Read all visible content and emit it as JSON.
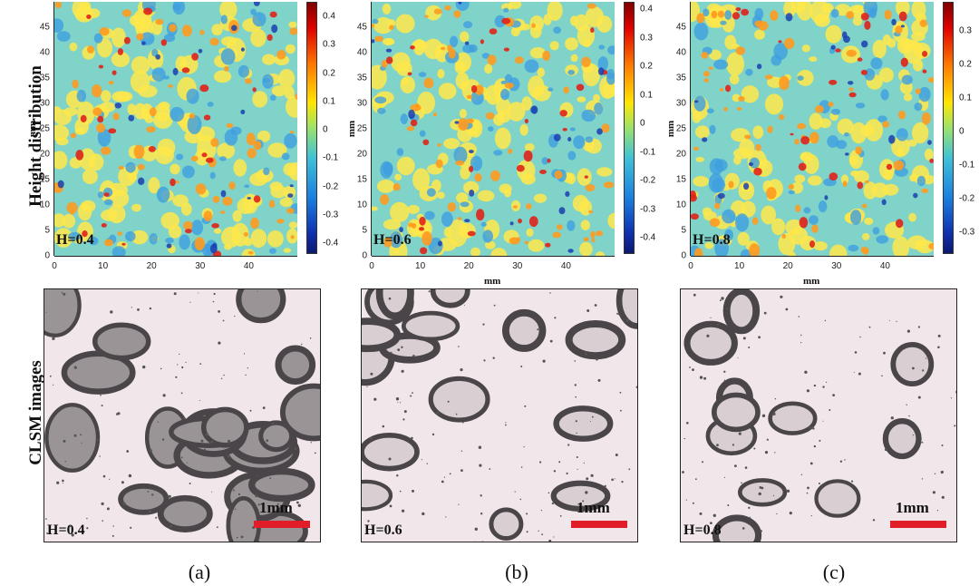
{
  "row_labels": {
    "top": "Height distribution",
    "bottom": "CLSM images"
  },
  "axis_unit": "mm",
  "panels": [
    {
      "id": "a",
      "caption": "(a)",
      "inset": "H=0.4",
      "scale": "1mm",
      "x_ticks": [
        "0",
        "10",
        "20",
        "30",
        "40"
      ],
      "y_ticks": [
        "0",
        "5",
        "10",
        "15",
        "20",
        "25",
        "30",
        "35",
        "40",
        "45"
      ],
      "cbar_ticks": [
        "0.4",
        "0.3",
        "0.2",
        "0.1",
        "0",
        "-0.1",
        "-0.2",
        "-0.3",
        "-0.4"
      ],
      "hurst": 0.4
    },
    {
      "id": "b",
      "caption": "(b)",
      "inset": "H=0.6",
      "scale": "1mm",
      "x_ticks": [
        "0",
        "10",
        "20",
        "30",
        "40"
      ],
      "y_ticks": [
        "0",
        "5",
        "10",
        "15",
        "20",
        "25",
        "30",
        "35",
        "40",
        "45"
      ],
      "cbar_ticks": [
        "0.4",
        "0.3",
        "0.2",
        "0.1",
        "0",
        "-0.1",
        "-0.2",
        "-0.3",
        "-0.4"
      ],
      "hurst": 0.6
    },
    {
      "id": "c",
      "caption": "(c)",
      "inset": "H=0.8",
      "scale": "1mm",
      "x_ticks": [
        "0",
        "10",
        "20",
        "30",
        "40"
      ],
      "y_ticks": [
        "0",
        "5",
        "10",
        "15",
        "20",
        "25",
        "30",
        "35",
        "40",
        "45"
      ],
      "cbar_ticks": [
        "0.3",
        "0.2",
        "0.1",
        "0",
        "-0.1",
        "-0.2",
        "-0.3"
      ],
      "hurst": 0.8
    }
  ],
  "colors": {
    "scalebar": "#e21d2a",
    "jet_low": "#1a237e",
    "jet_mid": "#7fd3c8",
    "jet_high": "#b00000"
  }
}
